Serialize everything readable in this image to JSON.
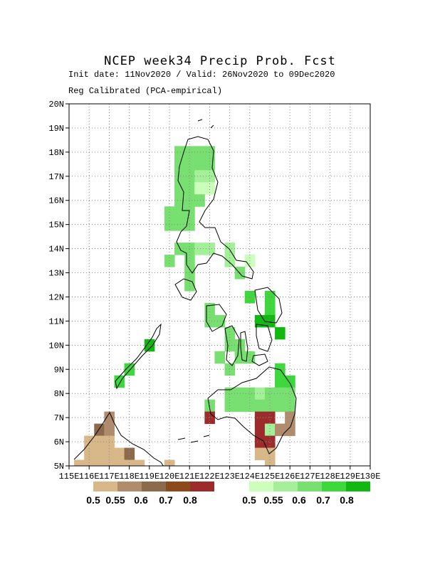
{
  "title": "NCEP week34 Precip Prob. Fcst",
  "subtitle_line1": "Init date: 11Nov2020 / Valid: 26Nov2020 to 09Dec2020",
  "subtitle_line2": "Reg Calibrated (PCA-empirical)",
  "map_data": {
    "lon_range": [
      115,
      130
    ],
    "lat_range": [
      5,
      20
    ],
    "lat_ticks": [
      "5N",
      "6N",
      "7N",
      "8N",
      "9N",
      "10N",
      "11N",
      "12N",
      "13N",
      "14N",
      "15N",
      "16N",
      "17N",
      "18N",
      "19N",
      "20N"
    ],
    "lon_ticks": [
      "115E",
      "116E",
      "117E",
      "118E",
      "119E",
      "120E",
      "121E",
      "122E",
      "123E",
      "124E",
      "125E",
      "126E",
      "127E",
      "128E",
      "129E",
      "130E"
    ],
    "grid": "dotted",
    "dry_colorbar": {
      "colors": [
        "#d8b888",
        "#b08c6c",
        "#8c6a4c",
        "#8c4a1c",
        "#9c2c2c"
      ],
      "labels": [
        "0.5",
        "0.55",
        "0.6",
        "0.7",
        "0.8"
      ]
    },
    "wet_colorbar": {
      "colors": [
        "#ccffbb",
        "#a4f098",
        "#78e070",
        "#3cd83c",
        "#12b812"
      ],
      "labels": [
        "0.5",
        "0.55",
        "0.6",
        "0.7",
        "0.8"
      ]
    },
    "cells": [
      [
        120.5,
        18.0,
        2
      ],
      [
        121.0,
        18.0,
        2
      ],
      [
        121.5,
        18.0,
        2
      ],
      [
        122.0,
        18.0,
        2
      ],
      [
        120.5,
        17.5,
        2
      ],
      [
        121.0,
        17.5,
        2
      ],
      [
        121.5,
        17.5,
        2
      ],
      [
        122.0,
        17.5,
        2
      ],
      [
        120.5,
        17.0,
        2
      ],
      [
        121.0,
        17.0,
        2
      ],
      [
        121.5,
        17.0,
        1
      ],
      [
        122.0,
        17.0,
        1
      ],
      [
        120.5,
        16.5,
        2
      ],
      [
        121.0,
        16.5,
        2
      ],
      [
        121.5,
        16.5,
        0
      ],
      [
        122.0,
        16.5,
        0
      ],
      [
        120.5,
        16.0,
        2
      ],
      [
        121.0,
        16.0,
        2
      ],
      [
        121.5,
        16.0,
        2
      ],
      [
        120.0,
        15.5,
        2
      ],
      [
        120.5,
        15.5,
        2
      ],
      [
        121.0,
        15.5,
        2
      ],
      [
        120.0,
        15.0,
        2
      ],
      [
        120.5,
        15.0,
        2
      ],
      [
        121.0,
        15.0,
        2
      ],
      [
        120.5,
        14.0,
        2
      ],
      [
        121.0,
        14.0,
        2
      ],
      [
        121.5,
        14.0,
        1
      ],
      [
        122.0,
        14.0,
        1
      ],
      [
        123.0,
        14.0,
        1
      ],
      [
        120.0,
        13.5,
        2
      ],
      [
        121.0,
        13.5,
        2
      ],
      [
        123.0,
        13.5,
        1
      ],
      [
        124.0,
        13.5,
        1
      ],
      [
        124.0,
        13.5,
        0
      ],
      [
        124.0,
        13.5,
        5
      ],
      [
        121.0,
        13.0,
        2
      ],
      [
        123.5,
        13.0,
        2
      ],
      [
        121.0,
        12.5,
        2
      ],
      [
        124.0,
        12.0,
        3
      ],
      [
        125.0,
        12.0,
        3
      ],
      [
        122.0,
        11.5,
        2
      ],
      [
        125.0,
        11.5,
        3
      ],
      [
        122.0,
        11.0,
        2
      ],
      [
        122.5,
        11.0,
        2
      ],
      [
        124.5,
        11.0,
        4
      ],
      [
        125.0,
        11.0,
        4
      ],
      [
        123.0,
        10.5,
        2
      ],
      [
        125.5,
        10.5,
        4
      ],
      [
        123.0,
        10.0,
        2
      ],
      [
        123.5,
        10.0,
        2
      ],
      [
        119.0,
        10.0,
        4
      ],
      [
        122.5,
        9.5,
        2
      ],
      [
        123.5,
        9.5,
        2
      ],
      [
        124.0,
        9.5,
        2
      ],
      [
        123.0,
        9.0,
        2
      ],
      [
        118.0,
        9.0,
        3
      ],
      [
        125.5,
        9.0,
        3
      ],
      [
        117.5,
        8.5,
        3
      ],
      [
        125.5,
        8.5,
        3
      ],
      [
        126.0,
        8.5,
        3
      ],
      [
        123.0,
        8.0,
        2
      ],
      [
        123.5,
        8.0,
        2
      ],
      [
        124.0,
        8.0,
        2
      ],
      [
        124.5,
        8.0,
        1
      ],
      [
        125.0,
        8.0,
        2
      ],
      [
        125.5,
        8.0,
        2
      ],
      [
        126.0,
        8.0,
        2
      ],
      [
        122.0,
        7.5,
        2
      ],
      [
        123.0,
        7.5,
        2
      ],
      [
        123.5,
        7.5,
        2
      ],
      [
        124.0,
        7.5,
        2
      ],
      [
        124.5,
        7.5,
        2
      ],
      [
        125.0,
        7.5,
        2
      ],
      [
        125.5,
        7.5,
        2
      ],
      [
        126.0,
        7.5,
        2
      ],
      [
        122.0,
        7.0,
        -5
      ],
      [
        124.5,
        7.0,
        -5
      ],
      [
        125.0,
        7.0,
        -5
      ],
      [
        126.0,
        7.0,
        -2
      ],
      [
        124.5,
        6.5,
        -5
      ],
      [
        125.0,
        6.5,
        1
      ],
      [
        125.5,
        6.5,
        -2
      ],
      [
        126.0,
        6.5,
        -2
      ],
      [
        124.5,
        6.0,
        -5
      ],
      [
        125.0,
        6.0,
        -5
      ],
      [
        124.5,
        5.5,
        -1
      ],
      [
        125.0,
        5.5,
        -1
      ],
      [
        125.0,
        5.0,
        -1
      ],
      [
        117.0,
        7.0,
        -2
      ],
      [
        116.5,
        6.5,
        -3
      ],
      [
        117.0,
        6.5,
        -2
      ],
      [
        116.0,
        6.0,
        -1
      ],
      [
        116.5,
        6.0,
        -1
      ],
      [
        117.0,
        6.0,
        -1
      ],
      [
        116.0,
        5.5,
        -1
      ],
      [
        116.5,
        5.5,
        -1
      ],
      [
        117.0,
        5.5,
        -1
      ],
      [
        117.5,
        5.5,
        -1
      ],
      [
        118.0,
        5.5,
        -3
      ],
      [
        115.5,
        5.0,
        -1
      ],
      [
        116.0,
        5.0,
        -1
      ],
      [
        116.5,
        5.0,
        -1
      ],
      [
        117.0,
        5.0,
        -1
      ],
      [
        117.5,
        5.0,
        -1
      ],
      [
        118.0,
        5.0,
        -1
      ],
      [
        118.5,
        5.0,
        -1
      ],
      [
        120.0,
        5.0,
        -1
      ]
    ]
  }
}
